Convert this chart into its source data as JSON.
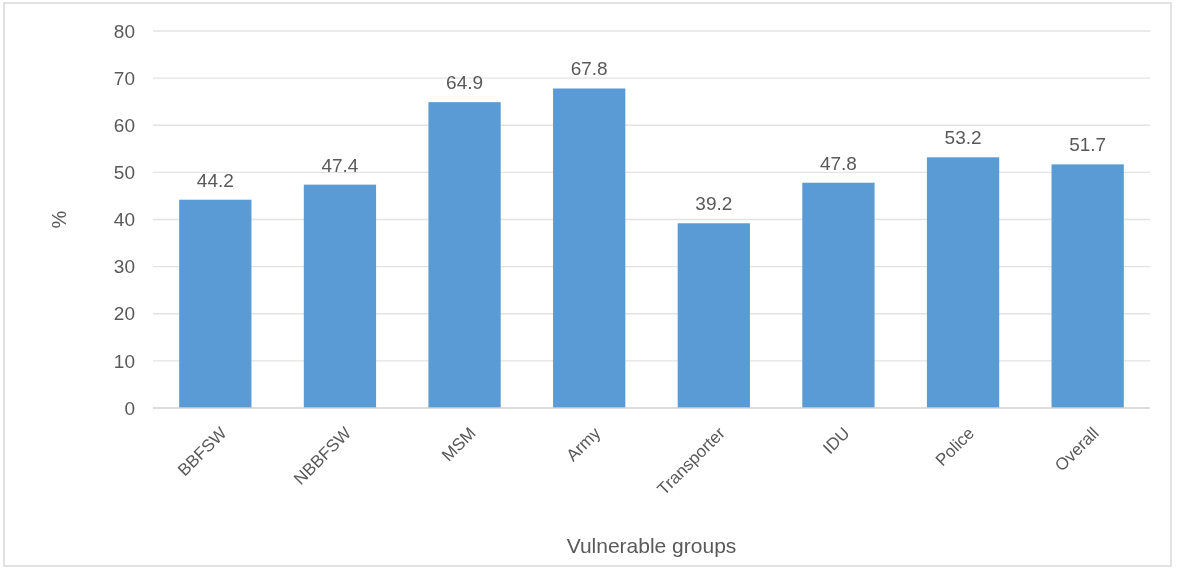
{
  "chart_data": {
    "type": "bar",
    "xlabel": "Vulnerable groups",
    "ylabel": "%",
    "categories": [
      "BBFSW",
      "NBBFSW",
      "MSM",
      "Army",
      "Transporter",
      "IDU",
      "Police",
      "Overall"
    ],
    "values": [
      44.2,
      47.4,
      64.9,
      67.8,
      39.2,
      47.8,
      53.2,
      51.7
    ],
    "color": "#5b9bd5",
    "ylim": [
      0,
      80
    ],
    "yticks": [
      0,
      10,
      20,
      30,
      40,
      50,
      60,
      70,
      80
    ],
    "grid": "y",
    "data_labels": true
  }
}
